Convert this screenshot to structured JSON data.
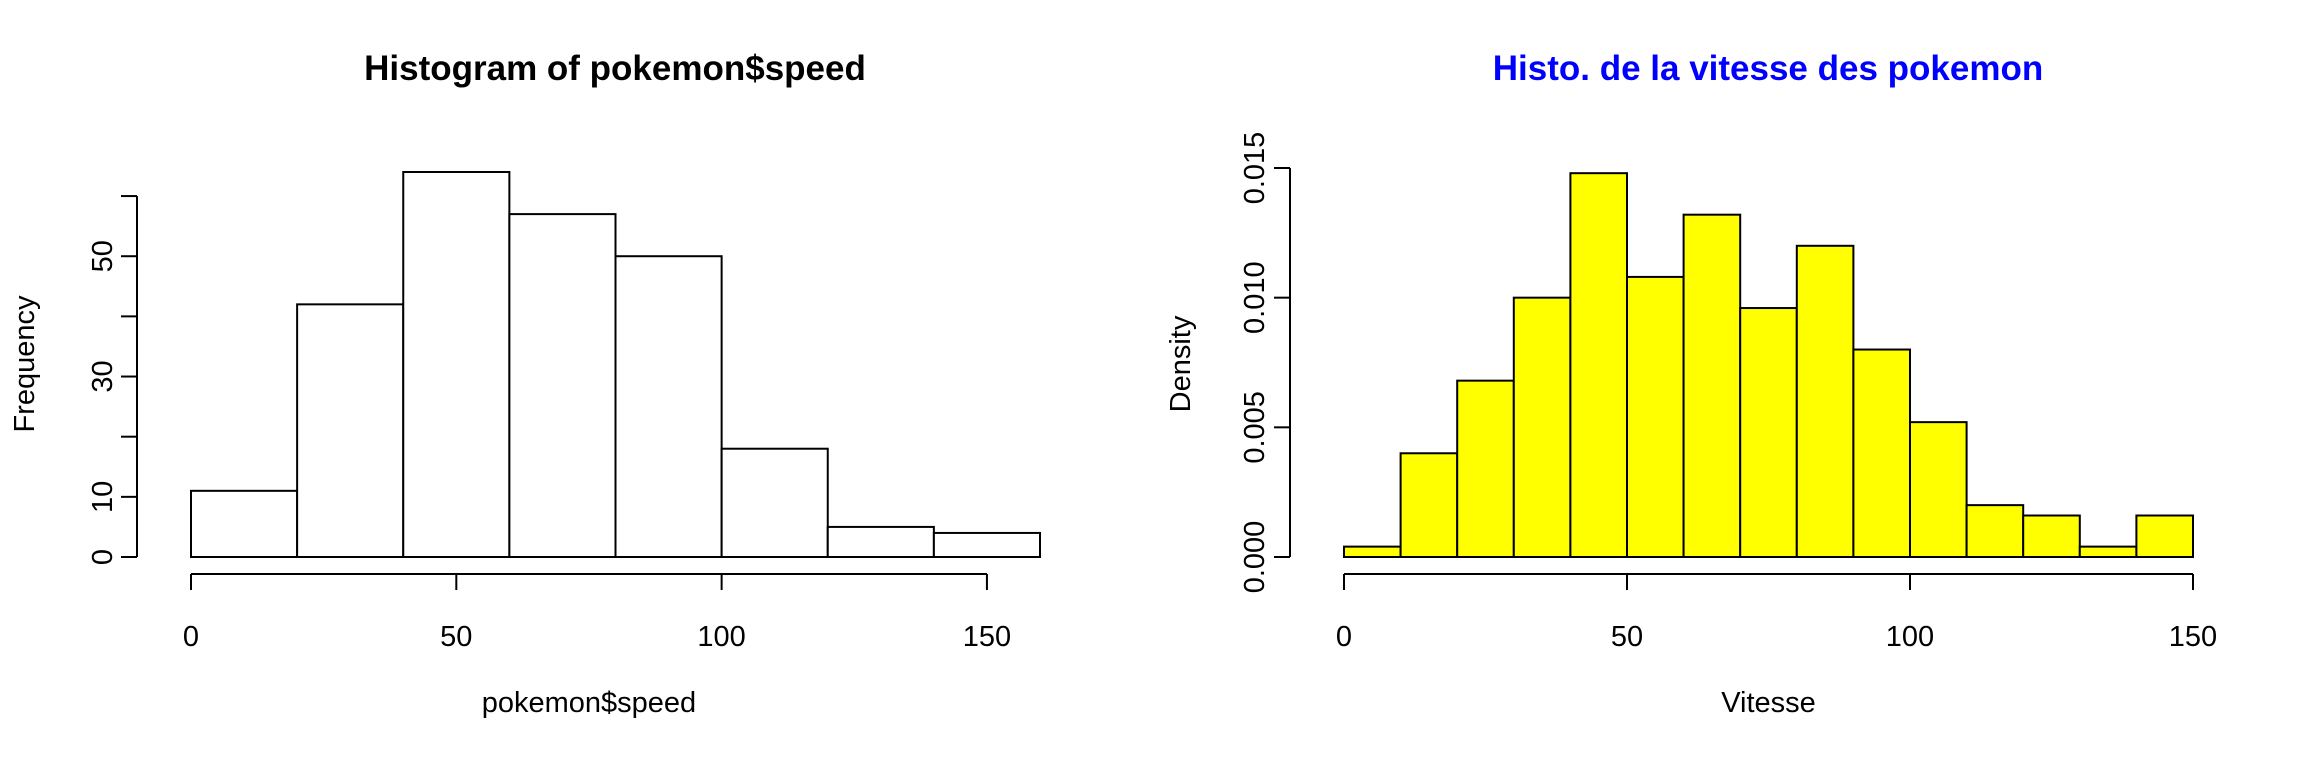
{
  "chart_data": [
    {
      "type": "bar",
      "title": "Histogram of pokemon$speed",
      "title_color": "#000000",
      "xlabel": "pokemon$speed",
      "ylabel": "Frequency",
      "bar_fill": "#ffffff",
      "bar_stroke": "#000000",
      "bins": [
        [
          0,
          20
        ],
        [
          20,
          40
        ],
        [
          40,
          60
        ],
        [
          60,
          80
        ],
        [
          80,
          100
        ],
        [
          100,
          120
        ],
        [
          120,
          140
        ],
        [
          140,
          160
        ]
      ],
      "values": [
        11,
        42,
        64,
        57,
        50,
        18,
        5,
        4
      ],
      "xlim": [
        0,
        160
      ],
      "ylim": [
        0,
        64
      ],
      "xticks": [
        0,
        50,
        100,
        150
      ],
      "xtick_labels": [
        "0",
        "50",
        "100",
        "150"
      ],
      "yticks": [
        0,
        10,
        30,
        50
      ],
      "ytick_labels": [
        "0",
        "10",
        "30",
        "50"
      ],
      "ytick_marks": [
        0,
        10,
        20,
        30,
        40,
        50,
        60
      ],
      "grid": false
    },
    {
      "type": "bar",
      "title": "Histo. de la vitesse des pokemon",
      "title_color": "#0000ff",
      "xlabel": "Vitesse",
      "ylabel": "Density",
      "bar_fill": "#ffff00",
      "bar_stroke": "#000000",
      "bins": [
        [
          0,
          10
        ],
        [
          10,
          20
        ],
        [
          20,
          30
        ],
        [
          30,
          40
        ],
        [
          40,
          50
        ],
        [
          50,
          60
        ],
        [
          60,
          70
        ],
        [
          70,
          80
        ],
        [
          80,
          90
        ],
        [
          90,
          100
        ],
        [
          100,
          110
        ],
        [
          110,
          120
        ],
        [
          120,
          130
        ],
        [
          130,
          140
        ],
        [
          140,
          150
        ]
      ],
      "values": [
        0.0004,
        0.004,
        0.0068,
        0.01,
        0.0148,
        0.0108,
        0.0132,
        0.0096,
        0.012,
        0.008,
        0.0052,
        0.002,
        0.0016,
        0.0004,
        0.0016
      ],
      "xlim": [
        0,
        150
      ],
      "ylim": [
        0,
        0.015
      ],
      "xticks": [
        0,
        50,
        100,
        150
      ],
      "xtick_labels": [
        "0",
        "50",
        "100",
        "150"
      ],
      "yticks": [
        0,
        0.005,
        0.01,
        0.015
      ],
      "ytick_labels": [
        "0.000",
        "0.005",
        "0.010",
        "0.015"
      ],
      "ytick_marks": [
        0,
        0.005,
        0.01,
        0.015
      ],
      "grid": false
    }
  ]
}
